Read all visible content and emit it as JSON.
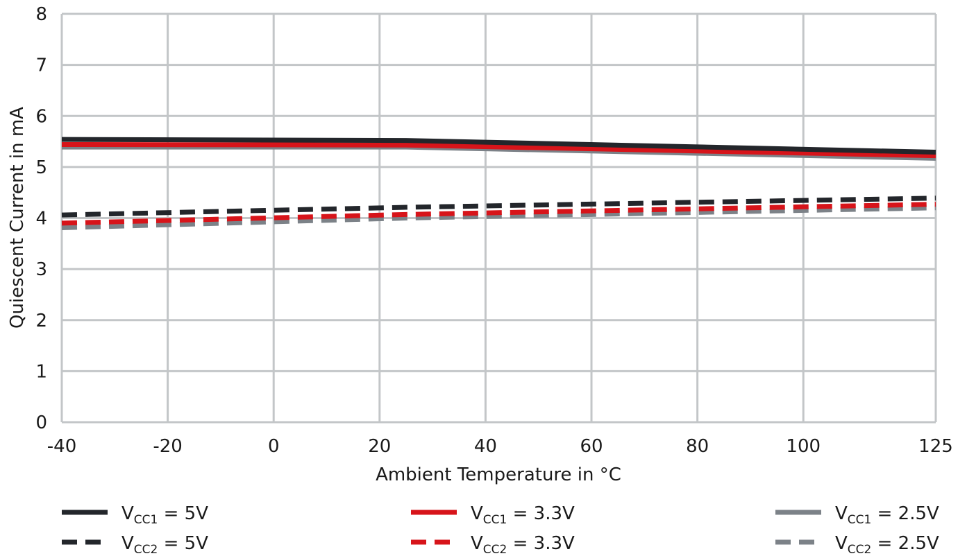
{
  "chart_data": {
    "type": "line",
    "xlabel": "Ambient Temperature in °C",
    "ylabel": "Quiescent Current in mA",
    "x_ticks": [
      "-40",
      "-20",
      "0",
      "20",
      "40",
      "60",
      "80",
      "100",
      "125"
    ],
    "x_tick_values": [
      -40,
      -20,
      0,
      20,
      40,
      60,
      80,
      100,
      125
    ],
    "y_ticks": [
      "0",
      "1",
      "2",
      "3",
      "4",
      "5",
      "6",
      "7",
      "8"
    ],
    "xlim": [
      -40,
      125
    ],
    "ylim": [
      0,
      8
    ],
    "grid": true,
    "legend_position": "bottom",
    "series": [
      {
        "name": "VCC1 = 5V",
        "label_main": "V",
        "label_sub": "CC1",
        "label_rest": " = 5V",
        "color": "#23262b",
        "dash": "solid",
        "x": [
          -40,
          25,
          125
        ],
        "y": [
          5.54,
          5.52,
          5.29
        ]
      },
      {
        "name": "VCC2 = 5V",
        "label_main": "V",
        "label_sub": "CC2",
        "label_rest": " = 5V",
        "color": "#23262b",
        "dash": "dashed",
        "x": [
          -40,
          25,
          125
        ],
        "y": [
          4.06,
          4.21,
          4.39
        ]
      },
      {
        "name": "VCC1 = 3.3V",
        "label_main": "V",
        "label_sub": "CC1",
        "label_rest": " = 3.3V",
        "color": "#d7141a",
        "dash": "solid",
        "x": [
          -40,
          25,
          125
        ],
        "y": [
          5.44,
          5.43,
          5.22
        ]
      },
      {
        "name": "VCC2 = 3.3V",
        "label_main": "V",
        "label_sub": "CC2",
        "label_rest": " = 3.3V",
        "color": "#d7141a",
        "dash": "dashed",
        "x": [
          -40,
          25,
          125
        ],
        "y": [
          3.9,
          4.07,
          4.27
        ]
      },
      {
        "name": "VCC1 = 2.5V",
        "label_main": "V",
        "label_sub": "CC1",
        "label_rest": " = 2.5V",
        "color": "#7c8288",
        "dash": "solid",
        "x": [
          -40,
          25,
          125
        ],
        "y": [
          5.39,
          5.39,
          5.17
        ]
      },
      {
        "name": "VCC2 = 2.5V",
        "label_main": "V",
        "label_sub": "CC2",
        "label_rest": " = 2.5V",
        "color": "#7c8288",
        "dash": "dashed",
        "x": [
          -40,
          25,
          125
        ],
        "y": [
          3.81,
          4.0,
          4.2
        ]
      }
    ]
  }
}
